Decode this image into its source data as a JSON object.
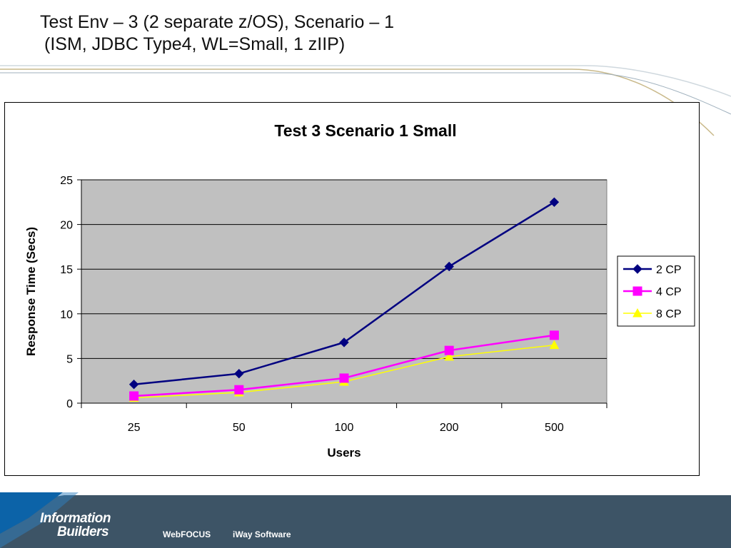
{
  "slide": {
    "title_line1": "Test Env – 3 (2 separate z/OS), Scenario – 1",
    "title_line2": "(ISM, JDBC Type4, WL=Small, 1 zIIP)"
  },
  "footer": {
    "logo_line1": "Information",
    "logo_line2": "Builders",
    "link1": "WebFOCUS",
    "link2": "iWay Software"
  },
  "colors": {
    "plot_bg": "#c0c0c0",
    "series_2cp": "#000080",
    "series_4cp": "#ff00ff",
    "series_8cp": "#ffff00",
    "footer_bg": "#3d5466",
    "accent_blue": "#0c63a8"
  },
  "chart_data": {
    "type": "line",
    "title": "Test 3 Scenario 1 Small",
    "xlabel": "Users",
    "ylabel": "Response Time (Secs)",
    "categories": [
      "25",
      "50",
      "100",
      "200",
      "500"
    ],
    "ylim": [
      0,
      25
    ],
    "yticks": [
      "0",
      "5",
      "10",
      "15",
      "20",
      "25"
    ],
    "grid": true,
    "legend_position": "right",
    "series": [
      {
        "name": "2 CP",
        "marker": "diamond",
        "values": [
          2.1,
          3.3,
          6.8,
          15.3,
          22.5
        ]
      },
      {
        "name": "4 CP",
        "marker": "square",
        "values": [
          0.8,
          1.5,
          2.8,
          5.9,
          7.6
        ]
      },
      {
        "name": "8 CP",
        "marker": "triangle",
        "values": [
          0.6,
          1.2,
          2.4,
          5.2,
          6.5
        ]
      }
    ]
  }
}
